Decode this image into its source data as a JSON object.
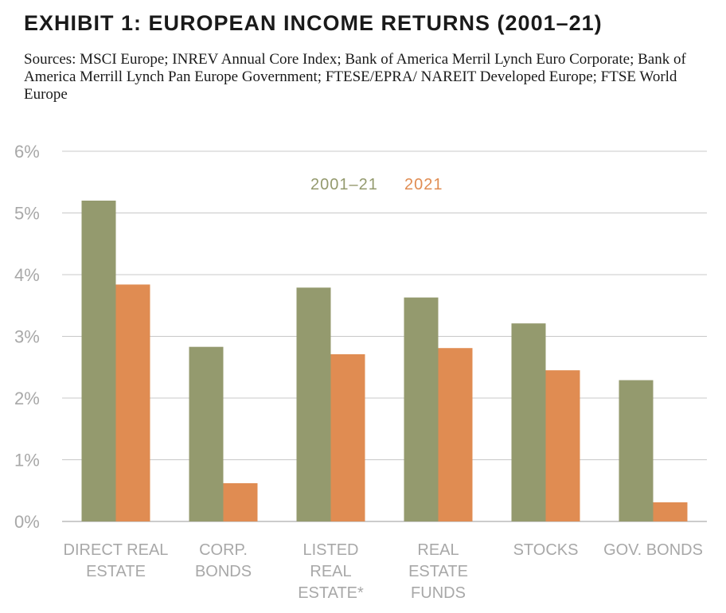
{
  "header": {
    "title": "EXHIBIT 1: EUROPEAN INCOME RETURNS (2001–21)",
    "sources": "Sources: MSCI Europe; INREV Annual Core Index; Bank of America Merril Lynch Euro Corporate; Bank of America Merrill Lynch Pan Europe Government; FTESE/EPRA/ NAREIT Developed Europe; FTSE World Europe"
  },
  "chart_data": {
    "type": "bar",
    "categories": [
      [
        "DIRECT REAL",
        "ESTATE"
      ],
      [
        "CORP.",
        "BONDS"
      ],
      [
        "LISTED",
        "REAL",
        "ESTATE*"
      ],
      [
        "REAL",
        "ESTATE",
        "FUNDS"
      ],
      [
        "STOCKS"
      ],
      [
        "GOV. BONDS"
      ]
    ],
    "series": [
      {
        "name": "2001–21",
        "color": "#949a6e",
        "values": [
          5.2,
          2.83,
          3.79,
          3.63,
          3.21,
          2.29
        ]
      },
      {
        "name": "2021",
        "color": "#e08c52",
        "values": [
          3.84,
          0.62,
          2.71,
          2.81,
          2.45,
          0.31
        ]
      }
    ],
    "yticks": [
      "0%",
      "1%",
      "2%",
      "3%",
      "4%",
      "5%",
      "6%"
    ],
    "ylim": [
      0,
      6
    ],
    "grid": true,
    "legend": "top-center",
    "gridColor": "#c8c8c8",
    "labelColor": "#a8a8a8"
  }
}
